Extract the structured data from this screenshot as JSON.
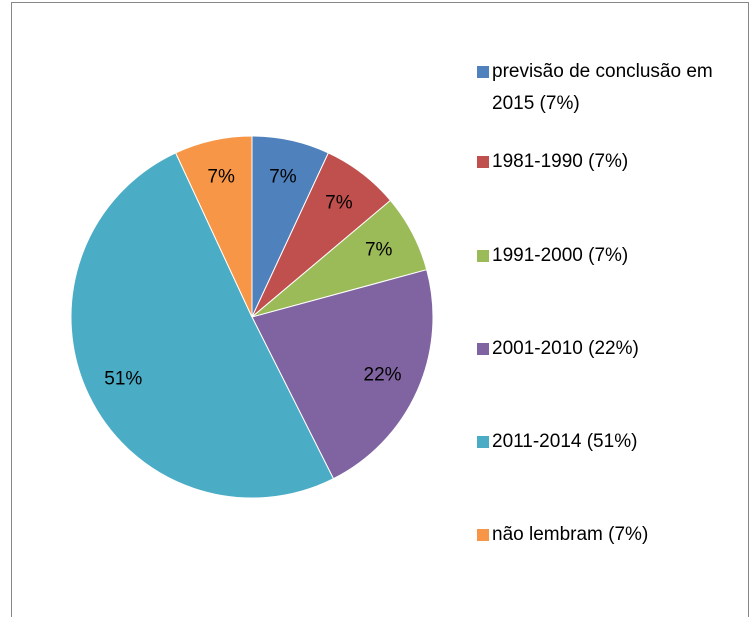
{
  "chart_data": {
    "type": "pie",
    "categories": [
      "previsão de conclusão em 2015 (7%)",
      "1981-1990 (7%)",
      "1991-2000 (7%)",
      "2001-2010 (22%)",
      "2011-2014 (51%)",
      "não lembram (7%)"
    ],
    "values": [
      7,
      7,
      7,
      22,
      51,
      7
    ],
    "value_labels": [
      "7%",
      "7%",
      "7%",
      "22%",
      "51%",
      "7%"
    ],
    "colors": [
      "#4f81bd",
      "#c0504d",
      "#9bbb59",
      "#8064a2",
      "#4bacc6",
      "#f79646"
    ],
    "legend": "right"
  }
}
